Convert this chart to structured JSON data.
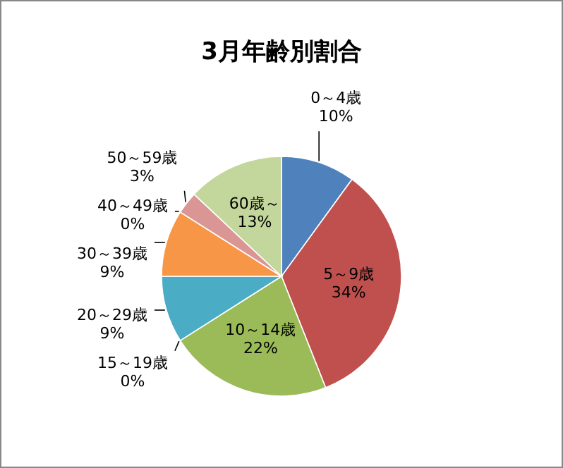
{
  "chart_data": {
    "type": "pie",
    "title": "3月年齢別割合",
    "categories": [
      "0～4歳",
      "5～9歳",
      "10～14歳",
      "15～19歳",
      "20～29歳",
      "30～39歳",
      "40～49歳",
      "50～59歳",
      "60歳～"
    ],
    "values": [
      10,
      34,
      22,
      0,
      9,
      9,
      0,
      3,
      13
    ],
    "colors": [
      "#4f81bd",
      "#c0504d",
      "#9bbb59",
      "#8064a2",
      "#4bacc6",
      "#f79646",
      "#95b3d7",
      "#d99694",
      "#c3d69b"
    ],
    "value_labels": [
      "10%",
      "34%",
      "22%",
      "0%",
      "9%",
      "9%",
      "0%",
      "3%",
      "13%"
    ]
  }
}
